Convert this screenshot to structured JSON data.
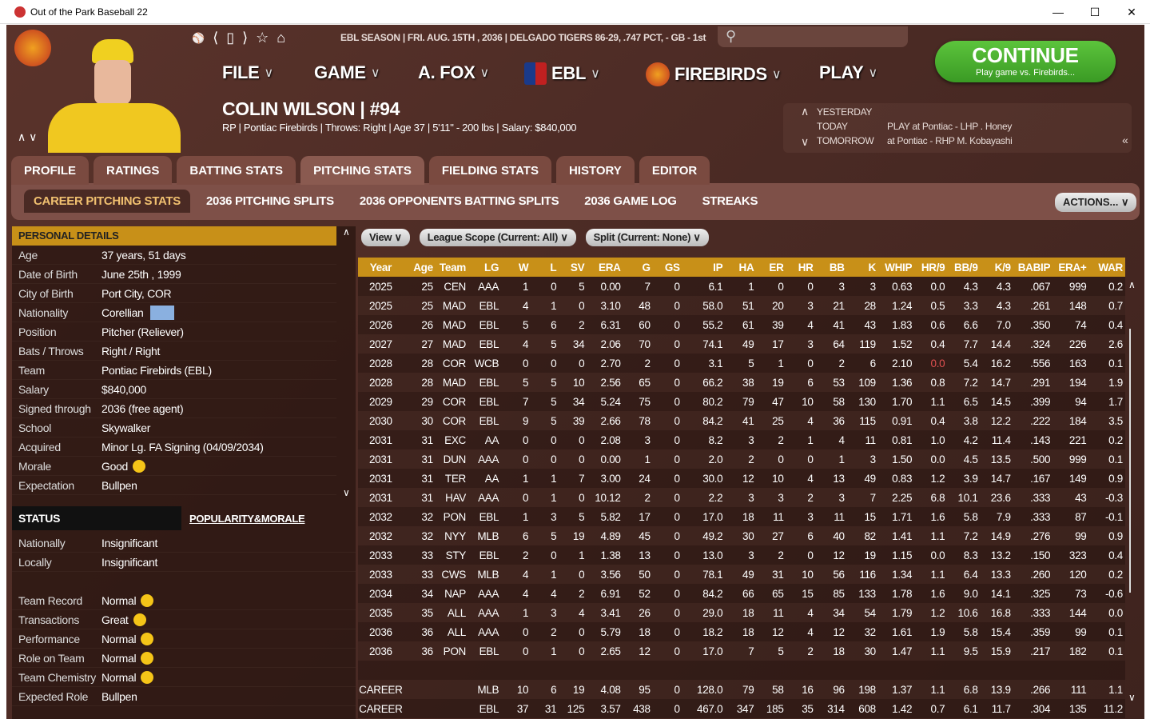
{
  "window": {
    "title": "Out of the Park Baseball 22",
    "min": "—",
    "max": "☐",
    "close": "✕"
  },
  "header": {
    "season_info": "EBL SEASON  |  FRI. AUG. 15TH , 2036  |  DELGADO TIGERS  86-29, .747 PCT, - GB - 1st",
    "menus": [
      "FILE",
      "GAME",
      "A. FOX",
      "EBL",
      "FIREBIRDS",
      "PLAY"
    ],
    "continue_label": "CONTINUE",
    "continue_sub": "Play game vs. Firebirds...",
    "player_name": "COLIN WILSON  |  #94",
    "player_info": "RP | Pontiac Firebirds  |  Throws: Right  |  Age 37  |  5'11\" - 200 lbs  |  Salary: $840,000",
    "schedule": [
      {
        "label": "YESTERDAY",
        "value": ""
      },
      {
        "label": "TODAY",
        "value": "PLAY at Pontiac - LHP  .  Honey"
      },
      {
        "label": "TOMORROW",
        "value": "at Pontiac - RHP M. Kobayashi"
      }
    ]
  },
  "tabs": [
    "PROFILE",
    "RATINGS",
    "BATTING STATS",
    "PITCHING STATS",
    "FIELDING STATS",
    "HISTORY",
    "EDITOR"
  ],
  "active_tab": "PITCHING STATS",
  "subtabs": [
    "CAREER PITCHING STATS",
    "2036 PITCHING SPLITS",
    "2036 OPPONENTS BATTING SPLITS",
    "2036 GAME LOG",
    "STREAKS"
  ],
  "actions_label": "ACTIONS...",
  "personal": {
    "title": "PERSONAL DETAILS",
    "rows": [
      [
        "Age",
        "37 years, 51 days"
      ],
      [
        "Date of Birth",
        "June 25th , 1999"
      ],
      [
        "City of Birth",
        "Port City, COR"
      ],
      [
        "Nationality",
        "Corellian"
      ],
      [
        "Position",
        "Pitcher (Reliever)"
      ],
      [
        "Bats / Throws",
        "Right / Right"
      ],
      [
        "Team",
        "Pontiac Firebirds (EBL)"
      ],
      [
        "Salary",
        "$840,000"
      ],
      [
        "Signed through",
        "2036 (free agent)"
      ],
      [
        "School",
        "Skywalker"
      ],
      [
        "Acquired",
        "Minor Lg. FA Signing (04/09/2034)"
      ],
      [
        "Morale",
        "Good"
      ],
      [
        "Expectation",
        "Bullpen"
      ]
    ]
  },
  "status": {
    "title": "STATUS",
    "link": "POPULARITY&MORALE",
    "rows": [
      [
        "Nationally",
        "Insignificant"
      ],
      [
        "Locally",
        "Insignificant"
      ]
    ],
    "morale": [
      [
        "Team Record",
        "Normal"
      ],
      [
        "Transactions",
        "Great"
      ],
      [
        "Performance",
        "Normal"
      ],
      [
        "Role on Team",
        "Normal"
      ],
      [
        "Team Chemistry",
        "Normal"
      ],
      [
        "Expected Role",
        "Bullpen"
      ]
    ]
  },
  "filters": [
    "View",
    "League Scope (Current: All)",
    "Split (Current: None)"
  ],
  "table": {
    "columns": [
      "Year",
      "Age",
      "Team",
      "LG",
      "W",
      "L",
      "SV",
      "ERA",
      "G",
      "GS",
      "IP",
      "HA",
      "ER",
      "HR",
      "BB",
      "K",
      "WHIP",
      "HR/9",
      "BB/9",
      "K/9",
      "BABIP",
      "ERA+",
      "WAR"
    ],
    "rows": [
      [
        "2025",
        "25",
        "CEN",
        "AAA",
        "1",
        "0",
        "5",
        "0.00",
        "7",
        "0",
        "6.1",
        "1",
        "0",
        "0",
        "3",
        "3",
        "0.63",
        "0.0",
        "4.3",
        "4.3",
        ".067",
        "999",
        "0.2"
      ],
      [
        "2025",
        "25",
        "MAD",
        "EBL",
        "4",
        "1",
        "0",
        "3.10",
        "48",
        "0",
        "58.0",
        "51",
        "20",
        "3",
        "21",
        "28",
        "1.24",
        "0.5",
        "3.3",
        "4.3",
        ".261",
        "148",
        "0.7"
      ],
      [
        "2026",
        "26",
        "MAD",
        "EBL",
        "5",
        "6",
        "2",
        "6.31",
        "60",
        "0",
        "55.2",
        "61",
        "39",
        "4",
        "41",
        "43",
        "1.83",
        "0.6",
        "6.6",
        "7.0",
        ".350",
        "74",
        "0.4"
      ],
      [
        "2027",
        "27",
        "MAD",
        "EBL",
        "4",
        "5",
        "34",
        "2.06",
        "70",
        "0",
        "74.1",
        "49",
        "17",
        "3",
        "64",
        "119",
        "1.52",
        "0.4",
        "7.7",
        "14.4",
        ".324",
        "226",
        "2.6"
      ],
      [
        "2028",
        "28",
        "COR",
        "WCB",
        "0",
        "0",
        "0",
        "2.70",
        "2",
        "0",
        "3.1",
        "5",
        "1",
        "0",
        "2",
        "6",
        "2.10",
        "0.0",
        "5.4",
        "16.2",
        ".556",
        "163",
        "0.1"
      ],
      [
        "2028",
        "28",
        "MAD",
        "EBL",
        "5",
        "5",
        "10",
        "2.56",
        "65",
        "0",
        "66.2",
        "38",
        "19",
        "6",
        "53",
        "109",
        "1.36",
        "0.8",
        "7.2",
        "14.7",
        ".291",
        "194",
        "1.9"
      ],
      [
        "2029",
        "29",
        "COR",
        "EBL",
        "7",
        "5",
        "34",
        "5.24",
        "75",
        "0",
        "80.2",
        "79",
        "47",
        "10",
        "58",
        "130",
        "1.70",
        "1.1",
        "6.5",
        "14.5",
        ".399",
        "94",
        "1.7"
      ],
      [
        "2030",
        "30",
        "COR",
        "EBL",
        "9",
        "5",
        "39",
        "2.66",
        "78",
        "0",
        "84.2",
        "41",
        "25",
        "4",
        "36",
        "115",
        "0.91",
        "0.4",
        "3.8",
        "12.2",
        ".222",
        "184",
        "3.5"
      ],
      [
        "2031",
        "31",
        "EXC",
        "AA",
        "0",
        "0",
        "0",
        "2.08",
        "3",
        "0",
        "8.2",
        "3",
        "2",
        "1",
        "4",
        "11",
        "0.81",
        "1.0",
        "4.2",
        "11.4",
        ".143",
        "221",
        "0.2"
      ],
      [
        "2031",
        "31",
        "DUN",
        "AAA",
        "0",
        "0",
        "0",
        "0.00",
        "1",
        "0",
        "2.0",
        "2",
        "0",
        "0",
        "1",
        "3",
        "1.50",
        "0.0",
        "4.5",
        "13.5",
        ".500",
        "999",
        "0.1"
      ],
      [
        "2031",
        "31",
        "TER",
        "AA",
        "1",
        "1",
        "7",
        "3.00",
        "24",
        "0",
        "30.0",
        "12",
        "10",
        "4",
        "13",
        "49",
        "0.83",
        "1.2",
        "3.9",
        "14.7",
        ".167",
        "149",
        "0.9"
      ],
      [
        "2031",
        "31",
        "HAV",
        "AAA",
        "0",
        "1",
        "0",
        "10.12",
        "2",
        "0",
        "2.2",
        "3",
        "3",
        "2",
        "3",
        "7",
        "2.25",
        "6.8",
        "10.1",
        "23.6",
        ".333",
        "43",
        "-0.3"
      ],
      [
        "2032",
        "32",
        "PON",
        "EBL",
        "1",
        "3",
        "5",
        "5.82",
        "17",
        "0",
        "17.0",
        "18",
        "11",
        "3",
        "11",
        "15",
        "1.71",
        "1.6",
        "5.8",
        "7.9",
        ".333",
        "87",
        "-0.1"
      ],
      [
        "2032",
        "32",
        "NYY",
        "MLB",
        "6",
        "5",
        "19",
        "4.89",
        "45",
        "0",
        "49.2",
        "30",
        "27",
        "6",
        "40",
        "82",
        "1.41",
        "1.1",
        "7.2",
        "14.9",
        ".276",
        "99",
        "0.9"
      ],
      [
        "2033",
        "33",
        "STY",
        "EBL",
        "2",
        "0",
        "1",
        "1.38",
        "13",
        "0",
        "13.0",
        "3",
        "2",
        "0",
        "12",
        "19",
        "1.15",
        "0.0",
        "8.3",
        "13.2",
        ".150",
        "323",
        "0.4"
      ],
      [
        "2033",
        "33",
        "CWS",
        "MLB",
        "4",
        "1",
        "0",
        "3.56",
        "50",
        "0",
        "78.1",
        "49",
        "31",
        "10",
        "56",
        "116",
        "1.34",
        "1.1",
        "6.4",
        "13.3",
        ".260",
        "120",
        "0.2"
      ],
      [
        "2034",
        "34",
        "NAP",
        "AAA",
        "4",
        "4",
        "2",
        "6.91",
        "52",
        "0",
        "84.2",
        "66",
        "65",
        "15",
        "85",
        "133",
        "1.78",
        "1.6",
        "9.0",
        "14.1",
        ".325",
        "73",
        "-0.6"
      ],
      [
        "2035",
        "35",
        "ALL",
        "AAA",
        "1",
        "3",
        "4",
        "3.41",
        "26",
        "0",
        "29.0",
        "18",
        "11",
        "4",
        "34",
        "54",
        "1.79",
        "1.2",
        "10.6",
        "16.8",
        ".333",
        "144",
        "0.0"
      ],
      [
        "2036",
        "36",
        "ALL",
        "AAA",
        "0",
        "2",
        "0",
        "5.79",
        "18",
        "0",
        "18.2",
        "18",
        "12",
        "4",
        "12",
        "32",
        "1.61",
        "1.9",
        "5.8",
        "15.4",
        ".359",
        "99",
        "0.1"
      ],
      [
        "2036",
        "36",
        "PON",
        "EBL",
        "0",
        "1",
        "0",
        "2.65",
        "12",
        "0",
        "17.0",
        "7",
        "5",
        "2",
        "18",
        "30",
        "1.47",
        "1.1",
        "9.5",
        "15.9",
        ".217",
        "182",
        "0.1"
      ]
    ],
    "totals": [
      [
        "CAREER",
        "",
        "",
        "MLB",
        "10",
        "6",
        "19",
        "4.08",
        "95",
        "0",
        "128.0",
        "79",
        "58",
        "16",
        "96",
        "198",
        "1.37",
        "1.1",
        "6.8",
        "13.9",
        ".266",
        "111",
        "1.1"
      ],
      [
        "CAREER",
        "",
        "",
        "EBL",
        "37",
        "31",
        "125",
        "3.57",
        "438",
        "0",
        "467.0",
        "347",
        "185",
        "35",
        "314",
        "608",
        "1.42",
        "0.7",
        "6.1",
        "11.7",
        ".304",
        "135",
        "11.2"
      ]
    ]
  },
  "colors": {
    "accent": "#c89018",
    "continue": "#4caf30",
    "highlight_red": "#e05050"
  }
}
